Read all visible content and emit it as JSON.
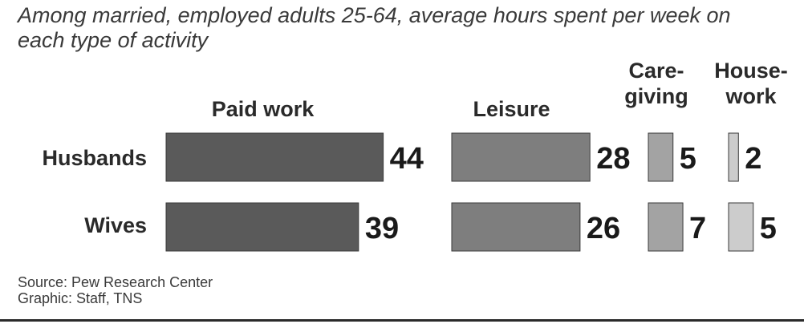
{
  "subtitle": "Among married, employed adults 25-64, average hours spent per week on each type of activity",
  "columns": [
    {
      "line1": "Paid work",
      "line2": ""
    },
    {
      "line1": "Leisure",
      "line2": ""
    },
    {
      "line1": "Care-",
      "line2": "giving"
    },
    {
      "line1": "House-",
      "line2": "work"
    }
  ],
  "rows": [
    "Husbands",
    "Wives"
  ],
  "source": {
    "line1": "Source: Pew Research Center",
    "line2": "Graphic: Staff, TNS"
  },
  "chart_data": {
    "type": "bar",
    "orientation": "horizontal",
    "categories": [
      "Husbands",
      "Wives"
    ],
    "series": [
      {
        "name": "Paid work",
        "values": [
          44,
          39
        ],
        "color": "#5a5a5a"
      },
      {
        "name": "Leisure",
        "values": [
          28,
          26
        ],
        "color": "#7e7e7e"
      },
      {
        "name": "Care-giving",
        "values": [
          5,
          7
        ],
        "color": "#a3a3a3"
      },
      {
        "name": "House-work",
        "values": [
          2,
          5
        ],
        "color": "#cccccc"
      }
    ],
    "unit": "hours per week",
    "legend": "none",
    "grid": false
  }
}
